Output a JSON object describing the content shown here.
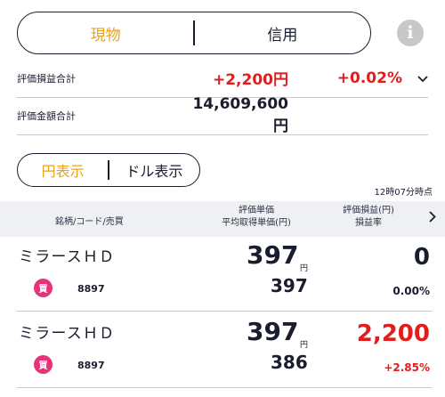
{
  "segment": {
    "options": [
      "現物",
      "信用"
    ],
    "active_index": 0
  },
  "info_icon": "i",
  "summary": {
    "pl_total_label": "評価損益合計",
    "pl_total_value": "+2,200円",
    "pl_total_rate": "+0.02%",
    "market_total_label": "評価金額合計",
    "market_total_value": "14,609,600円"
  },
  "currency_toggle": {
    "options": [
      "円表示",
      "ドル表示"
    ],
    "active_index": 0
  },
  "timestamp": "12時07分時点",
  "table_header": {
    "col1": "銘柄/コード/売買",
    "col2_line1": "評価単価",
    "col2_line2": "平均取得単価(円)",
    "col3_line1": "評価損益(円)",
    "col3_line2": "損益率"
  },
  "holdings": [
    {
      "name": "ミラースＨＤ",
      "trade_type": "買",
      "code": "8897",
      "price": "397",
      "price_unit": "円",
      "avg_price": "397",
      "pl": "0",
      "rate": "0.00%"
    },
    {
      "name": "ミラースＨＤ",
      "trade_type": "買",
      "code": "8897",
      "price": "397",
      "price_unit": "円",
      "avg_price": "386",
      "pl": "2,200",
      "rate": "+2.85%"
    }
  ],
  "colors": {
    "accent": "#e8a21f",
    "loss_gain_red": "#e31c1c",
    "buy_badge": "#e8317a",
    "text": "#1a1d2e",
    "header_bg": "#eff0f3"
  }
}
